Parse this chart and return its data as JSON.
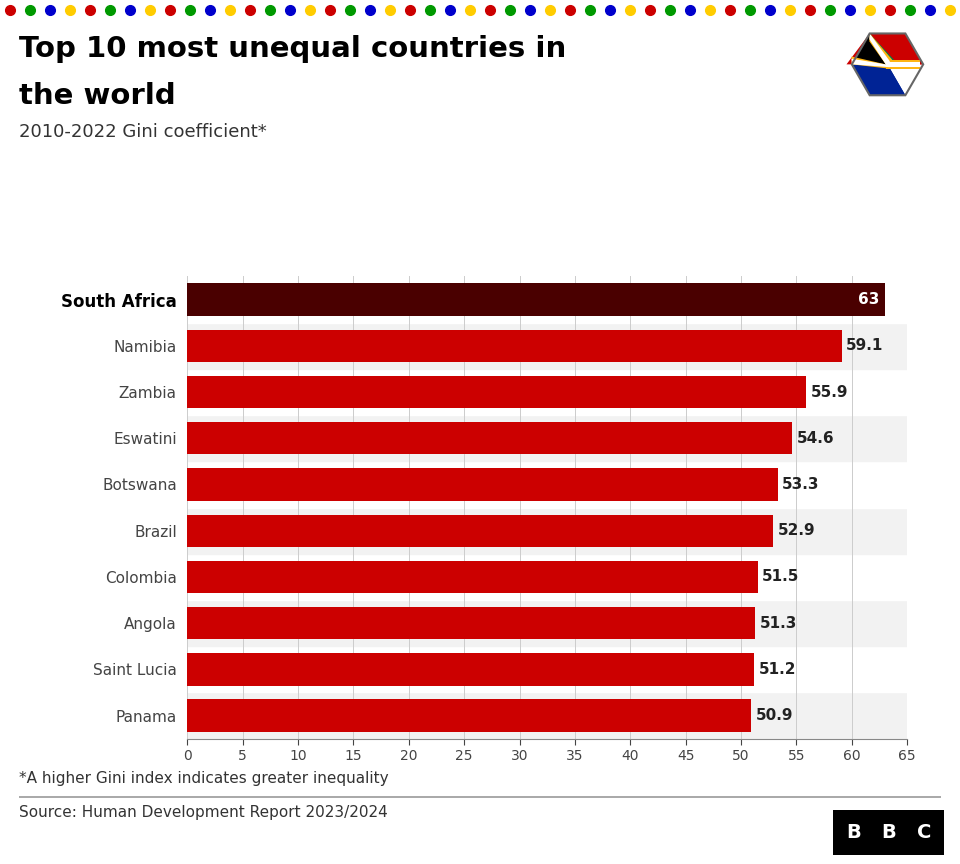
{
  "title_line1": "Top 10 most unequal countries in",
  "title_line2": "the world",
  "subtitle": "2010-2022 Gini coefficient*",
  "countries": [
    "Panama",
    "Saint Lucia",
    "Angola",
    "Colombia",
    "Brazil",
    "Botswana",
    "Eswatini",
    "Zambia",
    "Namibia",
    "South Africa"
  ],
  "values": [
    50.9,
    51.2,
    51.3,
    51.5,
    52.9,
    53.3,
    54.6,
    55.9,
    59.1,
    63.0
  ],
  "labels": [
    "50.9",
    "51.2",
    "51.3",
    "51.5",
    "52.9",
    "53.3",
    "54.6",
    "55.9",
    "59.1",
    "63"
  ],
  "bar_colors": [
    "#cc0000",
    "#cc0000",
    "#cc0000",
    "#cc0000",
    "#cc0000",
    "#cc0000",
    "#cc0000",
    "#cc0000",
    "#cc0000",
    "#4a0000"
  ],
  "bg_color": "#ffffff",
  "xlim": [
    0,
    65
  ],
  "xticks": [
    0,
    5,
    10,
    15,
    20,
    25,
    30,
    35,
    40,
    45,
    50,
    55,
    60,
    65
  ],
  "footnote": "*A higher Gini index indicates greater inequality",
  "source": "Source: Human Development Report 2023/2024",
  "top_dot_colors": [
    "#cc0000",
    "#009900",
    "#0000cc",
    "#ffcc00"
  ]
}
